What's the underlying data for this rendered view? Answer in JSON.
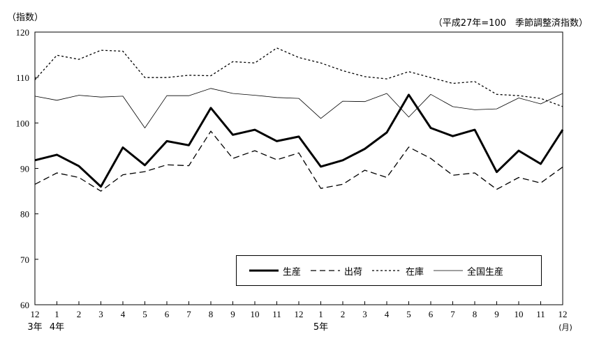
{
  "y_axis_label": "（指数）",
  "note": "（平成27年=100　季節調整済指数）",
  "x_unit_label": "(月)",
  "year_labels": [
    {
      "index": 0,
      "text": "3年"
    },
    {
      "index": 1,
      "text": "4年"
    },
    {
      "index": 13,
      "text": "5年"
    }
  ],
  "legend": [
    {
      "name": "生産",
      "style": "thick-solid"
    },
    {
      "name": "出荷",
      "style": "dashed"
    },
    {
      "name": "在庫",
      "style": "dotted"
    },
    {
      "name": "全国生産",
      "style": "thin-solid"
    }
  ],
  "chart_data": {
    "type": "line",
    "title": "",
    "xlabel": "",
    "ylabel": "（指数）",
    "ylim": [
      60,
      120
    ],
    "yticks": [
      60,
      70,
      80,
      90,
      100,
      110,
      120
    ],
    "grid": false,
    "legend_position": "bottom-right",
    "categories": [
      "12",
      "1",
      "2",
      "3",
      "4",
      "5",
      "6",
      "7",
      "8",
      "9",
      "10",
      "11",
      "12",
      "1",
      "2",
      "3",
      "4",
      "5",
      "6",
      "7",
      "8",
      "9",
      "10",
      "11",
      "12"
    ],
    "series": [
      {
        "name": "生産",
        "style": "thick-solid",
        "values": [
          91.8,
          93.0,
          90.5,
          86.0,
          94.6,
          90.7,
          96.0,
          95.1,
          103.3,
          97.4,
          98.5,
          96.0,
          97.0,
          90.4,
          91.8,
          94.3,
          97.9,
          106.2,
          98.9,
          97.1,
          98.5,
          89.2,
          93.9,
          91.0,
          98.5
        ]
      },
      {
        "name": "出荷",
        "style": "dashed",
        "values": [
          86.5,
          89.0,
          88.0,
          85.0,
          88.6,
          89.3,
          90.8,
          90.6,
          98.2,
          92.2,
          93.9,
          91.9,
          93.4,
          85.6,
          86.5,
          89.6,
          88.0,
          94.7,
          92.2,
          88.5,
          89.0,
          85.4,
          88.0,
          86.8,
          90.3
        ]
      },
      {
        "name": "在庫",
        "style": "dotted",
        "values": [
          109.5,
          114.9,
          114.0,
          116.0,
          115.8,
          110.0,
          110.0,
          110.5,
          110.4,
          113.5,
          113.2,
          116.5,
          114.4,
          113.2,
          111.5,
          110.2,
          109.7,
          111.3,
          110.0,
          108.7,
          109.1,
          106.3,
          106.0,
          105.4,
          103.6
        ]
      },
      {
        "name": "全国生産",
        "style": "thin-solid",
        "values": [
          105.9,
          105.0,
          106.1,
          105.7,
          105.9,
          98.9,
          106.0,
          106.0,
          107.6,
          106.5,
          106.1,
          105.6,
          105.4,
          101.0,
          104.8,
          104.7,
          106.5,
          101.3,
          106.3,
          103.6,
          102.9,
          103.1,
          105.5,
          104.2,
          106.5
        ]
      }
    ]
  }
}
